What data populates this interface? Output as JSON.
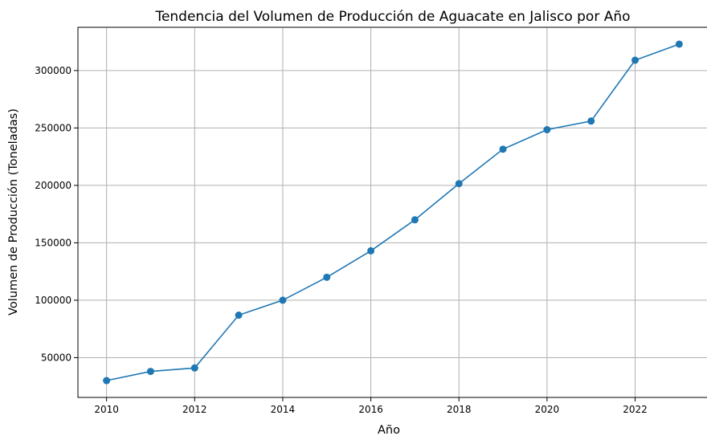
{
  "chart_data": {
    "type": "line",
    "title": "Tendencia del Volumen de Producción de Aguacate en Jalisco por Año",
    "xlabel": "Año",
    "ylabel": "Volumen de Producción (Toneladas)",
    "x": [
      2010,
      2011,
      2012,
      2013,
      2014,
      2015,
      2016,
      2017,
      2018,
      2019,
      2020,
      2021,
      2022,
      2023
    ],
    "series": [
      {
        "values": [
          30000,
          38000,
          41000,
          87000,
          100000,
          120000,
          143000,
          170000,
          201500,
          231500,
          248500,
          256000,
          309000,
          323000
        ],
        "color": "#1f77b4",
        "marker": "circle"
      }
    ],
    "xlim": [
      2009.35,
      2023.65
    ],
    "ylim": [
      15350,
      337650
    ],
    "xticks": [
      "2010",
      "2012",
      "2014",
      "2016",
      "2018",
      "2020",
      "2022"
    ],
    "yticks": [
      "50000",
      "100000",
      "150000",
      "200000",
      "250000",
      "300000"
    ],
    "grid": true,
    "legend": "none"
  }
}
